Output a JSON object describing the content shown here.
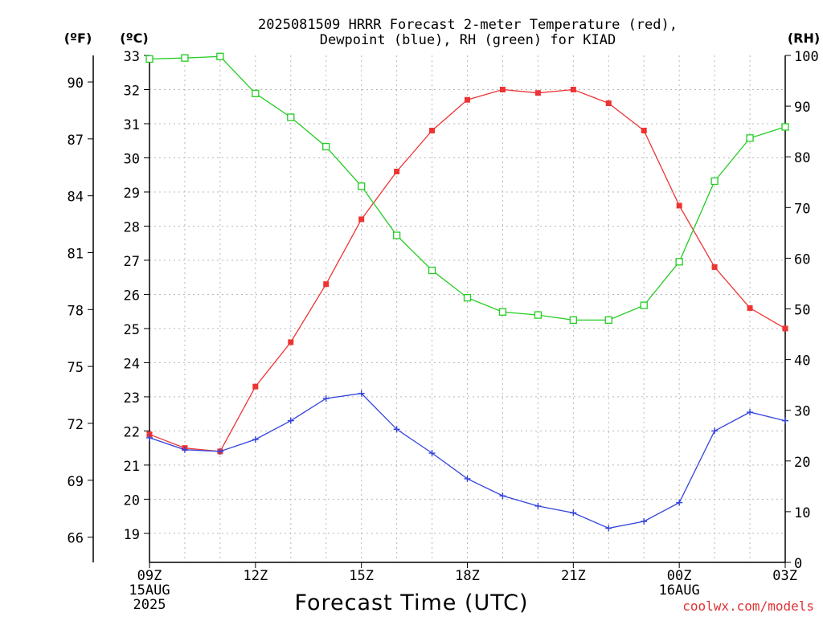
{
  "chart_data": {
    "type": "line",
    "title_line1": "2025081509 HRRR Forecast 2-meter Temperature (red),",
    "title_line2": "Dewpoint (blue), RH (green) for KIAD",
    "units_f": "(ºF)",
    "units_c": "(ºC)",
    "units_rh": "(RH)",
    "xlabel": "Forecast Time (UTC)",
    "credit": "coolwx.com/models",
    "x_hours": [
      9,
      10,
      11,
      12,
      13,
      14,
      15,
      16,
      17,
      18,
      19,
      20,
      21,
      22,
      23,
      24,
      25,
      26,
      27
    ],
    "x_ticks": [
      {
        "h": 9,
        "label": "09Z",
        "sub1": "15AUG",
        "sub2": "2025"
      },
      {
        "h": 12,
        "label": "12Z",
        "sub1": "",
        "sub2": ""
      },
      {
        "h": 15,
        "label": "15Z",
        "sub1": "",
        "sub2": ""
      },
      {
        "h": 18,
        "label": "18Z",
        "sub1": "",
        "sub2": ""
      },
      {
        "h": 21,
        "label": "21Z",
        "sub1": "",
        "sub2": ""
      },
      {
        "h": 24,
        "label": "00Z",
        "sub1": "16AUG",
        "sub2": ""
      },
      {
        "h": 27,
        "label": "03Z",
        "sub1": "",
        "sub2": ""
      }
    ],
    "xlim": [
      9,
      27
    ],
    "c_axis": {
      "min": 18.15,
      "max": 33,
      "ticks": [
        "19",
        "20",
        "21",
        "22",
        "23",
        "24",
        "25",
        "26",
        "27",
        "28",
        "29",
        "30",
        "31",
        "32",
        "33"
      ]
    },
    "f_ticks": [
      "66",
      "69",
      "72",
      "75",
      "78",
      "81",
      "84",
      "87",
      "90"
    ],
    "rh_axis": {
      "min": 0,
      "max": 100,
      "ticks": [
        "0",
        "10",
        "20",
        "30",
        "40",
        "50",
        "60",
        "70",
        "80",
        "90",
        "100"
      ]
    },
    "grid": true,
    "series": [
      {
        "key": "temperature",
        "axis": "c",
        "marker": "filled-square",
        "color": "#ee3333",
        "values": [
          21.9,
          21.5,
          21.4,
          23.3,
          24.6,
          26.3,
          28.2,
          29.6,
          30.8,
          31.7,
          32.0,
          31.9,
          32.0,
          31.6,
          30.8,
          28.6,
          26.8,
          25.6,
          25.0
        ]
      },
      {
        "key": "dewpoint",
        "axis": "c",
        "marker": "plus",
        "color": "#3344dd",
        "values": [
          21.8,
          21.45,
          21.4,
          21.75,
          22.3,
          22.95,
          23.1,
          22.05,
          21.35,
          20.6,
          20.1,
          19.8,
          19.6,
          19.15,
          19.35,
          19.9,
          22.0,
          22.55,
          22.3
        ]
      },
      {
        "key": "rh",
        "axis": "rh",
        "marker": "open-square",
        "color": "#22cc22",
        "values": [
          99.3,
          99.5,
          99.8,
          92.5,
          87.8,
          82.0,
          74.2,
          64.5,
          57.6,
          52.2,
          49.4,
          48.8,
          47.8,
          47.8,
          50.7,
          59.3,
          75.2,
          83.7,
          85.9
        ]
      }
    ]
  }
}
